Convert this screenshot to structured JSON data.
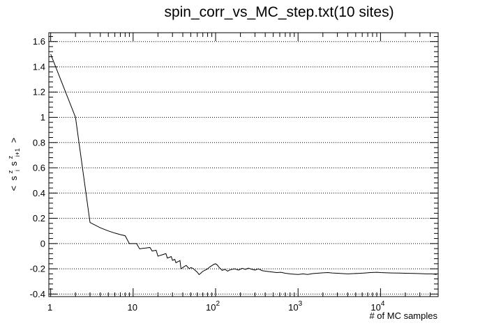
{
  "chart_data": {
    "type": "line",
    "title": "spin_corr_vs_MC_step.txt(10 sites)",
    "xlabel": "# of MC samples",
    "ylabel": "< s",
    "ylabel_parts": {
      "open": "<",
      "s1": "s",
      "sup1": "z",
      "sub1": "i",
      "s2": "s",
      "sup2": "z",
      "sub2": "i+1",
      "close": ">"
    },
    "x_scale": "log",
    "xlim": [
      0.95,
      50000
    ],
    "ylim": [
      -0.42,
      1.67
    ],
    "grid": {
      "y": true,
      "x": false,
      "style": "dotted"
    },
    "y_ticks": [
      -0.4,
      -0.2,
      0,
      0.2,
      0.4,
      0.6,
      0.8,
      1,
      1.2,
      1.4,
      1.6
    ],
    "y_tick_labels": [
      "-0.4",
      "-0.2",
      "0",
      "0.2",
      "0.4",
      "0.6",
      "0.8",
      "1",
      "1.2",
      "1.4",
      "1.6"
    ],
    "x_tick_labels": [
      {
        "value": 1,
        "base": "1",
        "exp": ""
      },
      {
        "value": 10,
        "base": "10",
        "exp": ""
      },
      {
        "value": 100,
        "base": "10",
        "exp": "2"
      },
      {
        "value": 1000,
        "base": "10",
        "exp": "3"
      },
      {
        "value": 10000,
        "base": "10",
        "exp": "4"
      }
    ],
    "series": [
      {
        "color": "#000000",
        "points": [
          [
            1,
            1.5
          ],
          [
            2,
            1.0
          ],
          [
            3,
            0.167
          ],
          [
            4,
            0.125
          ],
          [
            5,
            0.1
          ],
          [
            6,
            0.083
          ],
          [
            7,
            0.071
          ],
          [
            8,
            0.062
          ],
          [
            9,
            0.0
          ],
          [
            10,
            0.0
          ],
          [
            11,
            0.0
          ],
          [
            12,
            -0.042
          ],
          [
            13,
            -0.038
          ],
          [
            14,
            -0.036
          ],
          [
            15,
            -0.033
          ],
          [
            16,
            -0.031
          ],
          [
            17,
            -0.059
          ],
          [
            18,
            -0.056
          ],
          [
            19,
            -0.053
          ],
          [
            20,
            -0.1
          ],
          [
            21,
            -0.095
          ],
          [
            22,
            -0.091
          ],
          [
            23,
            -0.087
          ],
          [
            24,
            -0.083
          ],
          [
            25,
            -0.08
          ],
          [
            26,
            -0.115
          ],
          [
            27,
            -0.111
          ],
          [
            28,
            -0.107
          ],
          [
            29,
            -0.103
          ],
          [
            30,
            -0.133
          ],
          [
            31,
            -0.129
          ],
          [
            32,
            -0.125
          ],
          [
            33,
            -0.152
          ],
          [
            34,
            -0.147
          ],
          [
            35,
            -0.143
          ],
          [
            37,
            -0.135
          ],
          [
            38,
            -0.2
          ],
          [
            40,
            -0.19
          ],
          [
            42,
            -0.181
          ],
          [
            44,
            -0.173
          ],
          [
            46,
            -0.187
          ],
          [
            48,
            -0.2
          ],
          [
            50,
            -0.19
          ],
          [
            53,
            -0.196
          ],
          [
            56,
            -0.21
          ],
          [
            60,
            -0.227
          ],
          [
            63,
            -0.246
          ],
          [
            66,
            -0.235
          ],
          [
            70,
            -0.22
          ],
          [
            75,
            -0.21
          ],
          [
            80,
            -0.2
          ],
          [
            85,
            -0.185
          ],
          [
            90,
            -0.175
          ],
          [
            95,
            -0.165
          ],
          [
            100,
            -0.16
          ],
          [
            105,
            -0.17
          ],
          [
            110,
            -0.188
          ],
          [
            115,
            -0.2
          ],
          [
            120,
            -0.212
          ],
          [
            130,
            -0.205
          ],
          [
            140,
            -0.218
          ],
          [
            150,
            -0.208
          ],
          [
            170,
            -0.2
          ],
          [
            190,
            -0.21
          ],
          [
            210,
            -0.196
          ],
          [
            230,
            -0.205
          ],
          [
            250,
            -0.195
          ],
          [
            270,
            -0.202
          ],
          [
            300,
            -0.21
          ],
          [
            330,
            -0.2
          ],
          [
            370,
            -0.215
          ],
          [
            420,
            -0.22
          ],
          [
            480,
            -0.225
          ],
          [
            550,
            -0.23
          ],
          [
            620,
            -0.228
          ],
          [
            700,
            -0.235
          ],
          [
            800,
            -0.24
          ],
          [
            900,
            -0.243
          ],
          [
            1000,
            -0.245
          ],
          [
            1150,
            -0.24
          ],
          [
            1300,
            -0.245
          ],
          [
            1500,
            -0.238
          ],
          [
            1700,
            -0.235
          ],
          [
            2000,
            -0.232
          ],
          [
            2300,
            -0.23
          ],
          [
            2600,
            -0.233
          ],
          [
            3000,
            -0.235
          ],
          [
            3500,
            -0.238
          ],
          [
            4000,
            -0.24
          ],
          [
            4700,
            -0.238
          ],
          [
            5500,
            -0.236
          ],
          [
            6500,
            -0.233
          ],
          [
            7500,
            -0.23
          ],
          [
            9000,
            -0.228
          ],
          [
            10000,
            -0.23
          ],
          [
            12000,
            -0.232
          ],
          [
            14000,
            -0.233
          ],
          [
            17000,
            -0.234
          ],
          [
            20000,
            -0.235
          ],
          [
            25000,
            -0.237
          ],
          [
            30000,
            -0.238
          ],
          [
            36000,
            -0.24
          ],
          [
            42000,
            -0.24
          ],
          [
            48000,
            -0.245
          ]
        ]
      }
    ]
  }
}
